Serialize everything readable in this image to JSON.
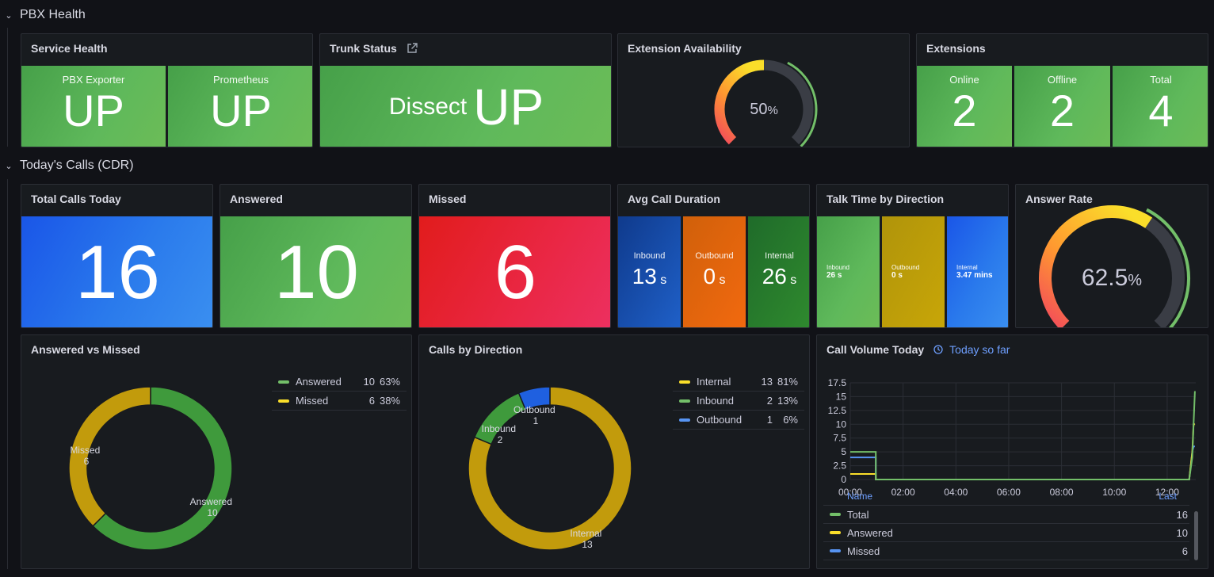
{
  "rows": {
    "pbx_health": "PBX Health",
    "todays_calls": "Today's Calls (CDR)"
  },
  "service_health": {
    "title": "Service Health",
    "tiles": [
      {
        "label": "PBX Exporter",
        "value": "UP"
      },
      {
        "label": "Prometheus",
        "value": "UP"
      }
    ]
  },
  "trunk_status": {
    "title": "Trunk Status",
    "name": "Dissect",
    "value": "UP"
  },
  "extension_availability": {
    "title": "Extension Availability",
    "value": "50",
    "unit": "%",
    "fraction": 0.5
  },
  "extensions": {
    "title": "Extensions",
    "tiles": [
      {
        "label": "Online",
        "value": "2"
      },
      {
        "label": "Offline",
        "value": "2"
      },
      {
        "label": "Total",
        "value": "4"
      }
    ]
  },
  "total_calls": {
    "title": "Total Calls Today",
    "value": "16"
  },
  "answered": {
    "title": "Answered",
    "value": "10"
  },
  "missed": {
    "title": "Missed",
    "value": "6"
  },
  "avg_duration": {
    "title": "Avg Call Duration",
    "tiles": [
      {
        "label": "Inbound",
        "value": "13",
        "unit": "s"
      },
      {
        "label": "Outbound",
        "value": "0",
        "unit": "s"
      },
      {
        "label": "Internal",
        "value": "26",
        "unit": "s"
      }
    ]
  },
  "talk_time": {
    "title": "Talk Time by Direction",
    "tiles": [
      {
        "label": "Inbound",
        "value": "26 s"
      },
      {
        "label": "Outbound",
        "value": "0 s"
      },
      {
        "label": "Internal",
        "value": "3.47 mins"
      }
    ]
  },
  "answer_rate": {
    "title": "Answer Rate",
    "value": "62.5",
    "unit": "%",
    "fraction": 0.625
  },
  "answered_vs_missed": {
    "title": "Answered vs Missed",
    "legend": [
      {
        "name": "Answered",
        "value": "10",
        "pct": "63%"
      },
      {
        "name": "Missed",
        "value": "6",
        "pct": "38%"
      }
    ],
    "labels": [
      {
        "name": "Missed",
        "value": "6"
      },
      {
        "name": "Answered",
        "value": "10"
      }
    ]
  },
  "calls_by_direction": {
    "title": "Calls by Direction",
    "legend": [
      {
        "name": "Internal",
        "value": "13",
        "pct": "81%"
      },
      {
        "name": "Inbound",
        "value": "2",
        "pct": "13%"
      },
      {
        "name": "Outbound",
        "value": "1",
        "pct": "6%"
      }
    ],
    "labels": [
      {
        "name": "Outbound",
        "value": "1"
      },
      {
        "name": "Inbound",
        "value": "2"
      },
      {
        "name": "Internal",
        "value": "13"
      }
    ]
  },
  "call_volume": {
    "title": "Call Volume Today",
    "time_range": "Today so far",
    "legend_header": {
      "name": "Name",
      "last": "Last"
    },
    "legend": [
      {
        "name": "Total",
        "last": "16"
      },
      {
        "name": "Answered",
        "last": "10"
      },
      {
        "name": "Missed",
        "last": "6"
      }
    ]
  },
  "colors": {
    "green": "#73bf69",
    "yellow": "#fade2a",
    "blue": "#5794f2",
    "donut_green": "#3f9a3c",
    "donut_olive": "#c29b0c",
    "donut_blue": "#1f60e0"
  },
  "chart_data": [
    {
      "type": "pie",
      "title": "Answered vs Missed",
      "categories": [
        "Answered",
        "Missed"
      ],
      "values": [
        10,
        6
      ]
    },
    {
      "type": "pie",
      "title": "Calls by Direction",
      "categories": [
        "Internal",
        "Inbound",
        "Outbound"
      ],
      "values": [
        13,
        2,
        1
      ]
    },
    {
      "type": "line",
      "title": "Call Volume Today",
      "x_ticks": [
        "00:00",
        "02:00",
        "04:00",
        "06:00",
        "08:00",
        "10:00",
        "12:00"
      ],
      "y_ticks": [
        "0",
        "2.5",
        "5",
        "7.5",
        "10",
        "12.5",
        "15",
        "17.5"
      ],
      "xlim": [
        "00:00",
        "13:05"
      ],
      "ylim": [
        0,
        17.5
      ],
      "grid": true,
      "series": [
        {
          "name": "Total",
          "color": "#73bf69",
          "points": [
            [
              "00:00",
              5
            ],
            [
              "00:58",
              5
            ],
            [
              "00:58",
              0
            ],
            [
              "12:50",
              0
            ],
            [
              "12:57",
              4
            ],
            [
              "13:00",
              10
            ],
            [
              "13:03",
              16
            ]
          ]
        },
        {
          "name": "Answered",
          "color": "#fade2a",
          "points": [
            [
              "00:00",
              1
            ],
            [
              "00:58",
              1
            ],
            [
              "00:58",
              0
            ],
            [
              "12:50",
              0
            ],
            [
              "12:57",
              5
            ],
            [
              "13:00",
              10
            ],
            [
              "13:03",
              10
            ]
          ]
        },
        {
          "name": "Missed",
          "color": "#5794f2",
          "points": [
            [
              "00:00",
              4
            ],
            [
              "00:58",
              4
            ],
            [
              "00:58",
              0
            ],
            [
              "12:50",
              0
            ],
            [
              "12:57",
              5
            ],
            [
              "13:00",
              6
            ],
            [
              "13:03",
              6
            ]
          ]
        }
      ]
    }
  ]
}
